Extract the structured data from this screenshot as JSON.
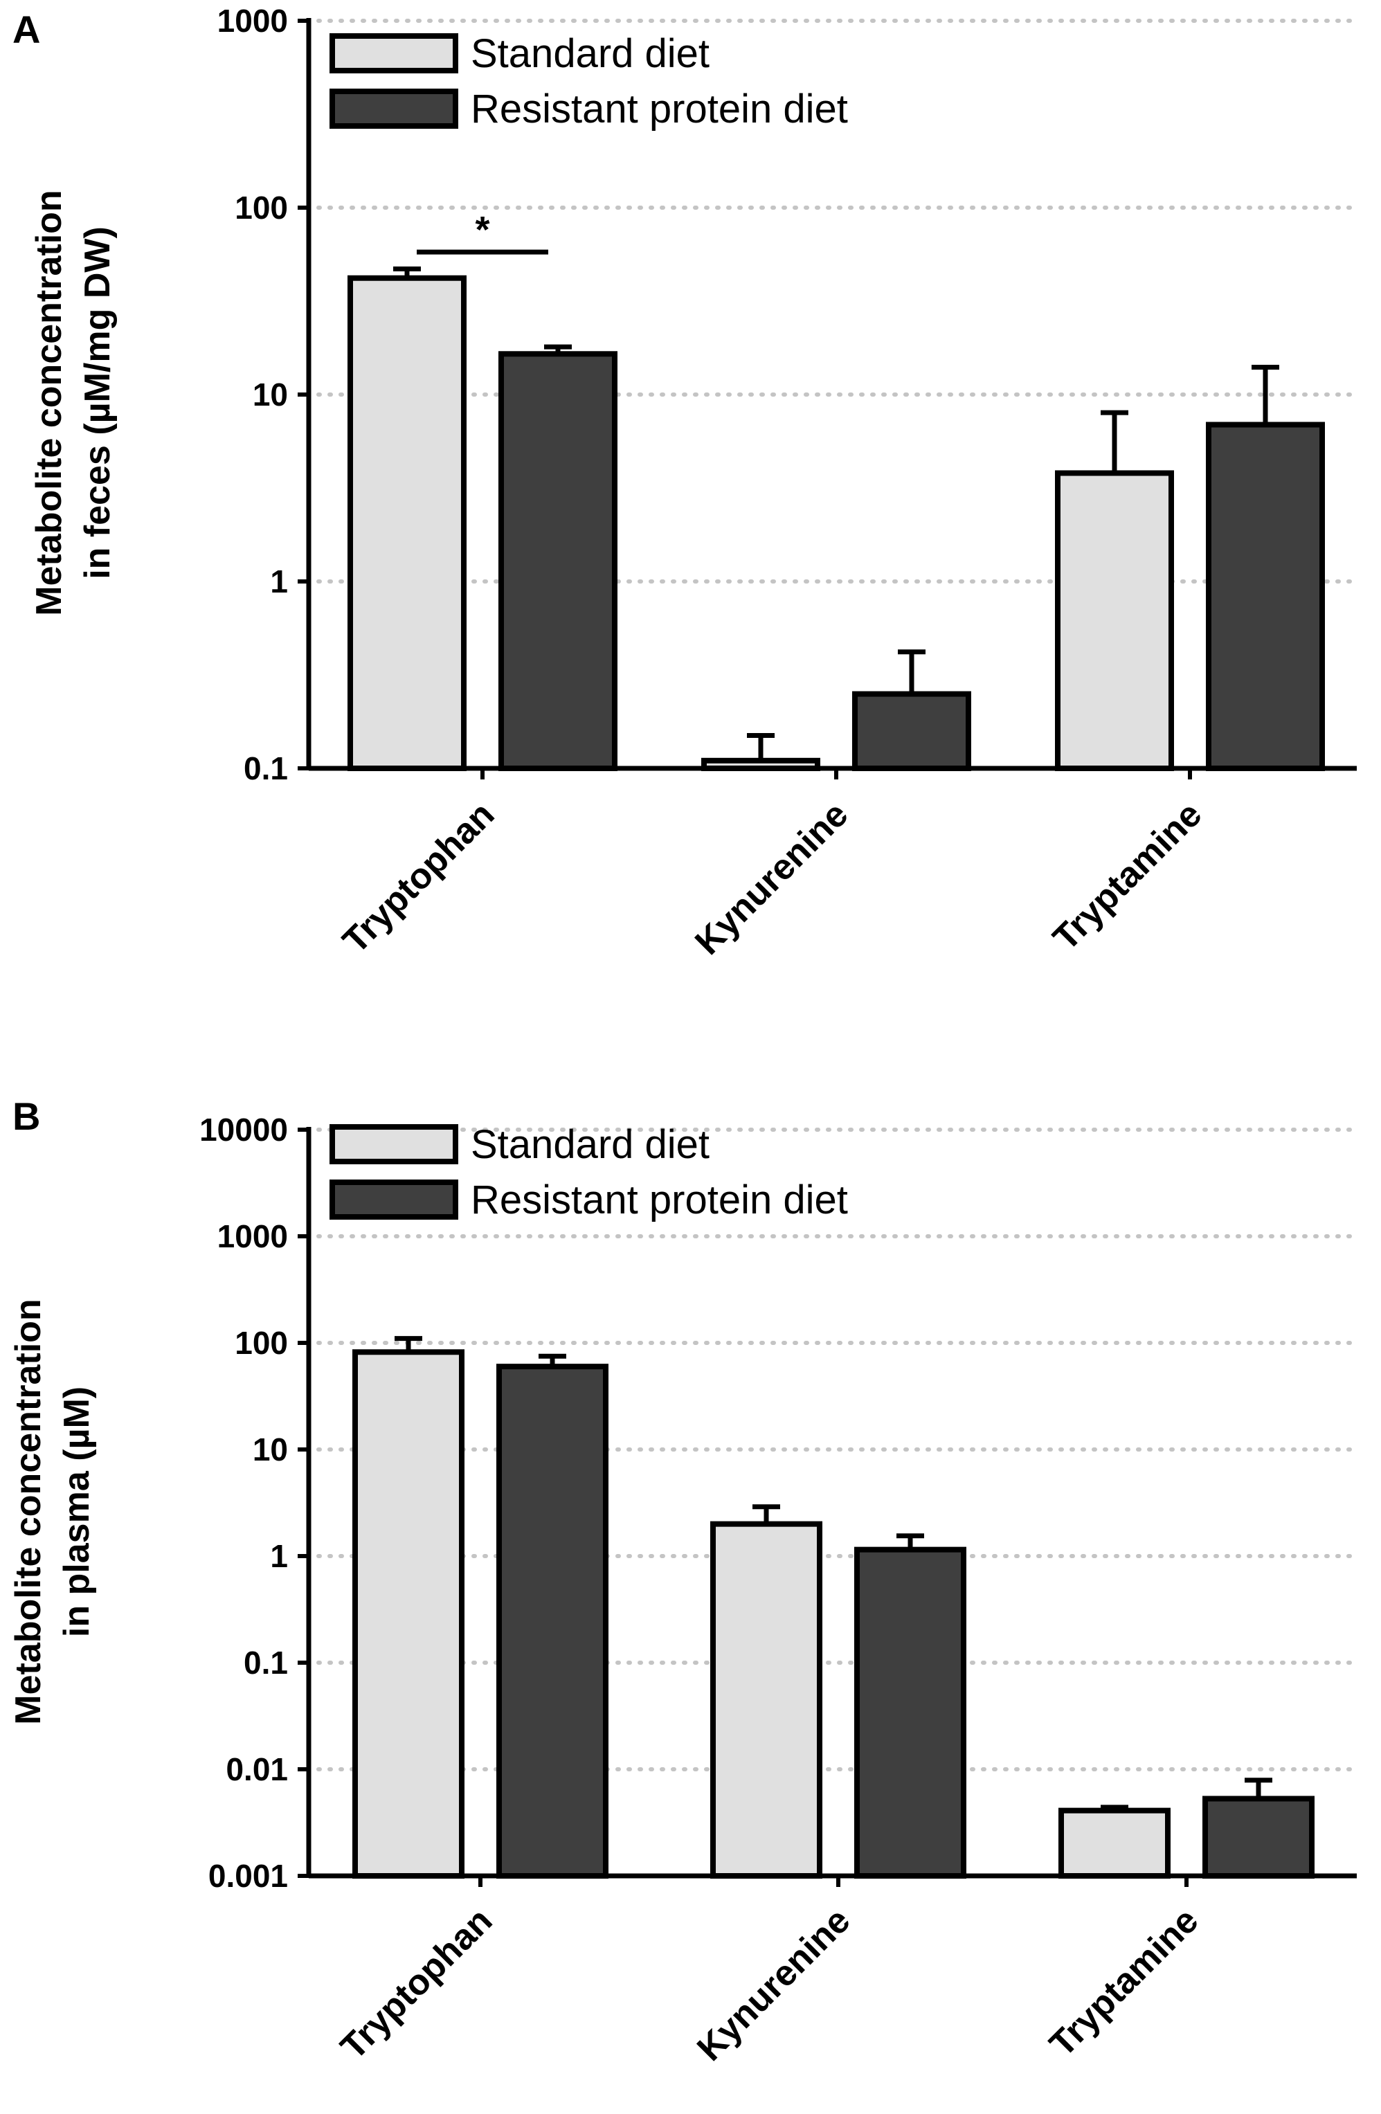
{
  "figure": {
    "colors": {
      "standard": "#e0e0e0",
      "resistant": "#3f3f3f",
      "grid": "#c4c4c4",
      "ink": "#000000"
    }
  },
  "chart_data": [
    {
      "panel": "A",
      "type": "bar",
      "scale": "log",
      "categories": [
        "Tryptophan",
        "Kynurenine",
        "Tryptamine"
      ],
      "series": [
        {
          "name": "Standard diet",
          "color_key": "standard",
          "values": [
            42,
            0.11,
            3.8
          ],
          "error_upper": [
            47,
            0.15,
            8.0
          ]
        },
        {
          "name": "Resistant protein diet",
          "color_key": "resistant",
          "values": [
            16.5,
            0.25,
            6.9
          ],
          "error_upper": [
            18,
            0.42,
            14
          ]
        }
      ],
      "ylim": [
        0.1,
        1000
      ],
      "yticks": [
        0.1,
        1,
        10,
        100,
        1000
      ],
      "ytick_labels": [
        "0.1",
        "1",
        "10",
        "100",
        "1000"
      ],
      "ylabel_lines": [
        "Metabolite concentration",
        "in feces (µM/mg DW)"
      ],
      "xlabel": "",
      "grid": true,
      "legend_position": "top-left",
      "annotations": [
        {
          "text": "*",
          "category": "Tryptophan",
          "y": 80
        }
      ]
    },
    {
      "panel": "B",
      "type": "bar",
      "scale": "log",
      "categories": [
        "Tryptophan",
        "Kynurenine",
        "Tryptamine"
      ],
      "series": [
        {
          "name": "Standard diet",
          "color_key": "standard",
          "values": [
            82,
            2.0,
            0.0041
          ],
          "error_upper": [
            110,
            2.9,
            0.0044
          ]
        },
        {
          "name": "Resistant protein diet",
          "color_key": "resistant",
          "values": [
            60,
            1.15,
            0.0053
          ],
          "error_upper": [
            75,
            1.55,
            0.0079
          ]
        }
      ],
      "ylim": [
        0.001,
        10000
      ],
      "yticks": [
        0.001,
        0.01,
        0.1,
        1,
        10,
        100,
        1000,
        10000
      ],
      "ytick_labels": [
        "0.001",
        "0.01",
        "0.1",
        "1",
        "10",
        "100",
        "1000",
        "10000"
      ],
      "ylabel_lines": [
        "Metabolite concentration",
        "in plasma (µM)"
      ],
      "xlabel": "",
      "grid": true,
      "legend_position": "top-left",
      "annotations": []
    }
  ]
}
